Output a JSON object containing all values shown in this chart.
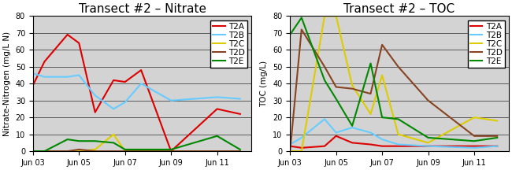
{
  "nitrate_title": "Transect #2 – Nitrate",
  "toc_title": "Transect #2 – TOC",
  "nitrate_ylabel": "Nitrate-Nitrogen (mg/L N)",
  "toc_ylabel": "TOC (mg/L)",
  "ylim": [
    0,
    80
  ],
  "yticks": [
    0,
    10,
    20,
    30,
    40,
    50,
    60,
    70,
    80
  ],
  "colors": {
    "T2A": "#dd0000",
    "T2B": "#66ccff",
    "T2C": "#ddcc00",
    "T2D": "#884422",
    "T2E": "#008800"
  },
  "nitrate_x": {
    "T2A": [
      0,
      0.5,
      1.5,
      2.0,
      2.7,
      3.5,
      4.0,
      4.7,
      6.0,
      8.0,
      9.0
    ],
    "T2B": [
      0,
      0.5,
      1.5,
      2.0,
      2.7,
      3.5,
      4.0,
      4.7,
      6.0,
      8.0,
      9.0
    ],
    "T2C": [
      0,
      0.5,
      1.5,
      2.0,
      2.7,
      3.5,
      4.0,
      4.7,
      6.0,
      8.0,
      9.0
    ],
    "T2D": [
      0,
      0.5,
      1.5,
      2.0,
      2.7,
      3.5,
      4.0,
      4.7,
      6.0,
      8.0,
      9.0
    ],
    "T2E": [
      0,
      0.5,
      1.5,
      2.0,
      2.7,
      3.5,
      4.0,
      4.7,
      6.0,
      8.0,
      9.0
    ]
  },
  "nitrate_y": {
    "T2A": [
      39,
      53,
      69,
      64,
      23,
      42,
      41,
      48,
      0,
      25,
      22
    ],
    "T2B": [
      46,
      44,
      44,
      45,
      33,
      25,
      29,
      40,
      30,
      32,
      31
    ],
    "T2C": [
      0,
      0,
      0,
      0,
      1,
      10,
      0,
      0,
      0,
      0,
      0
    ],
    "T2D": [
      0,
      0,
      0,
      1,
      0,
      0,
      0,
      0,
      0,
      0,
      0
    ],
    "T2E": [
      0,
      0,
      7,
      6,
      6,
      5,
      1,
      1,
      1,
      9,
      1
    ]
  },
  "toc_x": {
    "T2A": [
      0,
      0.5,
      1.5,
      2.0,
      2.7,
      3.5,
      4.0,
      4.7,
      6.0,
      8.0,
      9.0
    ],
    "T2B": [
      0,
      0.5,
      1.5,
      2.0,
      2.7,
      3.5,
      4.0,
      4.7,
      6.0,
      8.0,
      9.0
    ],
    "T2C": [
      0,
      0.5,
      1.5,
      2.0,
      2.7,
      3.5,
      4.0,
      4.7,
      6.0,
      8.0,
      9.0
    ],
    "T2D": [
      0,
      0.5,
      1.5,
      2.0,
      2.7,
      3.5,
      4.0,
      4.7,
      6.0,
      8.0,
      9.0
    ],
    "T2E": [
      0,
      0.5,
      1.5,
      2.0,
      2.7,
      3.5,
      4.0,
      4.7,
      6.0,
      8.0,
      9.0
    ]
  },
  "toc_y": {
    "T2A": [
      3,
      2,
      3,
      9,
      5,
      4,
      3,
      3,
      3,
      3,
      3
    ],
    "T2B": [
      4,
      8,
      19,
      11,
      14,
      11,
      7,
      4,
      3,
      2,
      3
    ],
    "T2C": [
      0,
      0,
      80,
      80,
      39,
      22,
      45,
      10,
      5,
      20,
      18
    ],
    "T2D": [
      0,
      72,
      50,
      38,
      37,
      34,
      63,
      50,
      30,
      9,
      9
    ],
    "T2E": [
      69,
      79,
      42,
      31,
      15,
      52,
      20,
      19,
      8,
      6,
      8
    ]
  },
  "background_color": "#d3d3d3",
  "title_fontsize": 11,
  "label_fontsize": 7.5,
  "tick_fontsize": 7,
  "legend_fontsize": 7.5,
  "linewidth": 1.5,
  "xtick_positions": [
    0,
    2,
    4,
    6,
    8
  ],
  "xtick_labels": [
    "Jun 03",
    "Jun 05",
    "Jun 07",
    "Jun 09",
    "Jun 11"
  ],
  "xlim": [
    0,
    9.5
  ]
}
